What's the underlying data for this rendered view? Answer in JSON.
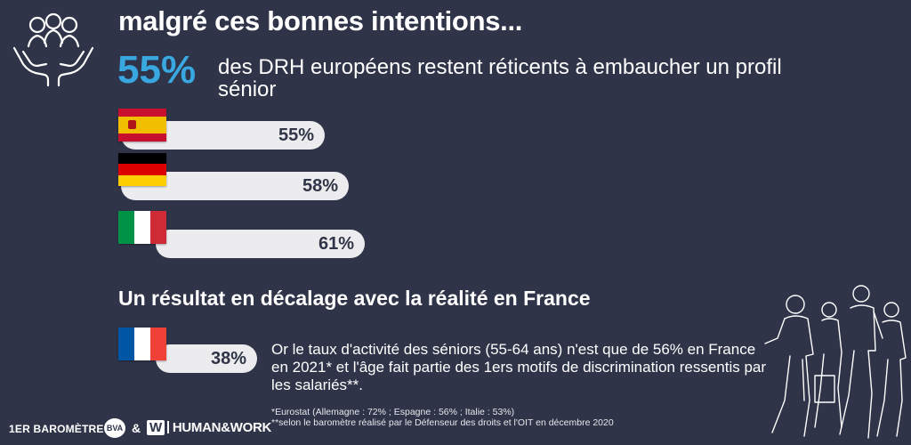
{
  "header": {
    "title": "malgré ces bonnes intentions...",
    "headline_pct": "55%",
    "headline_text": "des DRH européens restent réticents à embaucher un profil sénior"
  },
  "countries": [
    {
      "flag": "spain-flag",
      "value": "55%"
    },
    {
      "flag": "germany-flag",
      "value": "58%"
    },
    {
      "flag": "italy-flag",
      "value": "61%"
    }
  ],
  "france": {
    "section_title": "Un résultat en décalage avec la réalité en France",
    "value": "38%",
    "description": "Or le taux d'activité des séniors (55-64 ans) n'est que de 56% en France en 2021* et l'âge fait partie des 1ers motifs de discrimination ressentis par les salariés**.",
    "note1": "*Eurostat (Allemagne : 72% ; Espagne : 56% ; Italie : 53%)",
    "note2": "**selon le baromètre réalisé par le Défenseur des droits et l'OIT en décembre 2020"
  },
  "footer": {
    "barometer": "1ER BAROMÈTRE",
    "bva": "BVA",
    "amp": "&",
    "hw_mark": "W",
    "hw_name": "HUMAN&WORK"
  },
  "colors": {
    "background": "#2f3448",
    "accent": "#3aa8e0",
    "bar": "#ececee"
  },
  "icons": [
    "people-in-hands-icon",
    "walking-people-illustration"
  ]
}
